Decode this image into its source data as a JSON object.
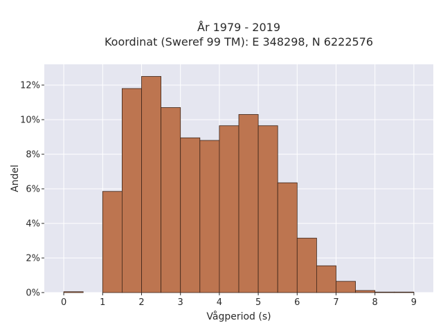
{
  "chart_data": {
    "type": "bar",
    "title": [
      "År 1979 - 2019",
      "Koordinat (Sweref 99 TM): E 348298, N 6222576"
    ],
    "xlabel": "Vågperiod (s)",
    "ylabel": "Andel",
    "bin_width": 0.5,
    "bin_starts": [
      0,
      0.5,
      1,
      1.5,
      2,
      2.5,
      3,
      3.5,
      4,
      4.5,
      5,
      5.5,
      6,
      6.5,
      7,
      7.5,
      8,
      8.5
    ],
    "values": [
      0.05,
      0,
      5.85,
      11.8,
      12.5,
      10.7,
      8.95,
      8.8,
      9.65,
      10.3,
      9.65,
      6.35,
      3.15,
      1.55,
      0.65,
      0.12,
      0.03,
      0.03
    ],
    "xticks": [
      "0",
      "1",
      "2",
      "3",
      "4",
      "5",
      "6",
      "7",
      "8",
      "9"
    ],
    "yticks": [
      "0%",
      "2%",
      "4%",
      "6%",
      "8%",
      "10%",
      "12%"
    ],
    "xlim": [
      -0.5,
      9.5
    ],
    "ylim": [
      0,
      13.2
    ],
    "grid": true,
    "colors": {
      "bar": "#bd7550",
      "edge": "#3b2418",
      "plot_bg": "#e5e6f0",
      "grid": "#ffffff"
    }
  }
}
